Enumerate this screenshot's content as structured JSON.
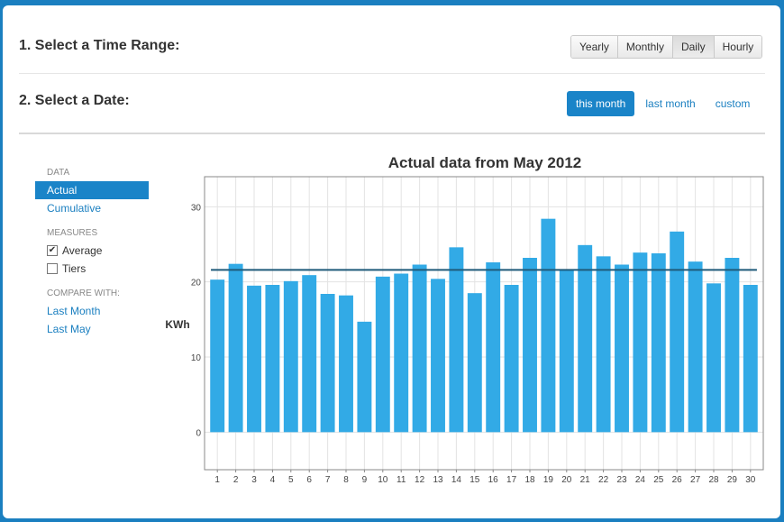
{
  "time_range": {
    "title": "1. Select a Time Range:",
    "options": [
      "Yearly",
      "Monthly",
      "Daily",
      "Hourly"
    ],
    "selected": "Daily"
  },
  "date_select": {
    "title": "2. Select a Date:",
    "options": [
      "this month",
      "last month",
      "custom"
    ],
    "selected": "this month"
  },
  "sidebar": {
    "data_heading": "DATA",
    "data_items": [
      "Actual",
      "Cumulative"
    ],
    "data_selected": "Actual",
    "measures_heading": "MEASURES",
    "measures": [
      {
        "label": "Average",
        "checked": true
      },
      {
        "label": "Tiers",
        "checked": false
      }
    ],
    "compare_heading": "COMPARE WITH:",
    "compare_items": [
      "Last Month",
      "Last May"
    ]
  },
  "chart_data": {
    "type": "bar",
    "title": "Actual data from May 2012",
    "ylabel": "KWh",
    "xlabel": "",
    "ylim": [
      -5,
      34
    ],
    "yticks": [
      0,
      10,
      20,
      30
    ],
    "categories": [
      "1",
      "2",
      "3",
      "4",
      "5",
      "6",
      "7",
      "8",
      "9",
      "10",
      "11",
      "12",
      "13",
      "14",
      "15",
      "16",
      "17",
      "18",
      "19",
      "20",
      "21",
      "22",
      "23",
      "24",
      "25",
      "26",
      "27",
      "28",
      "29",
      "30"
    ],
    "values": [
      20.3,
      22.4,
      19.5,
      19.6,
      20.1,
      20.9,
      18.4,
      18.2,
      14.7,
      20.7,
      21.1,
      22.3,
      20.4,
      24.6,
      18.5,
      22.6,
      19.6,
      23.2,
      28.4,
      21.6,
      24.9,
      23.4,
      22.3,
      23.9,
      23.8,
      26.7,
      22.7,
      19.8,
      23.2,
      19.6
    ],
    "average": 21.6,
    "bar_color": "#32aae6",
    "average_color": "#1f5a7a",
    "grid": true
  }
}
